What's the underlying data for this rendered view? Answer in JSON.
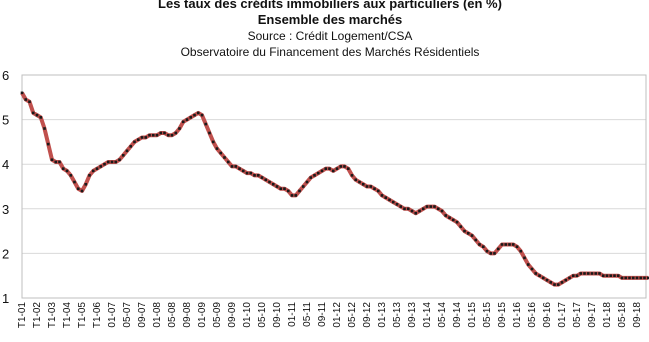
{
  "chart_data": {
    "type": "line",
    "title": "Les taux des crédits immobiliers aux particuliers (en %)",
    "subtitle": "Ensemble des marchés",
    "source": "Source : Crédit Logement/CSA",
    "publisher": "Observatoire du Financement des Marchés Résidentiels",
    "categories": [
      "T1-01",
      null,
      null,
      null,
      "T1-02",
      null,
      null,
      null,
      "T1-03",
      null,
      null,
      null,
      "T1-04",
      null,
      null,
      null,
      "T1-05",
      null,
      null,
      null,
      "T1-06",
      null,
      null,
      null,
      "01-07",
      null,
      null,
      null,
      "05-07",
      null,
      null,
      null,
      "09-07",
      null,
      null,
      null,
      "01-08",
      null,
      null,
      null,
      "05-08",
      null,
      null,
      null,
      "09-08",
      null,
      null,
      null,
      "01-09",
      null,
      null,
      null,
      "05-09",
      null,
      null,
      null,
      "09-09",
      null,
      null,
      null,
      "01-10",
      null,
      null,
      null,
      "05-10",
      null,
      null,
      null,
      "09-10",
      null,
      null,
      null,
      "01-11",
      null,
      null,
      null,
      "05-11",
      null,
      null,
      null,
      "09-11",
      null,
      null,
      null,
      "01-12",
      null,
      null,
      null,
      "05-12",
      null,
      null,
      null,
      "09-12",
      null,
      null,
      null,
      "01-13",
      null,
      null,
      null,
      "05-13",
      null,
      null,
      null,
      "09-13",
      null,
      null,
      null,
      "01-14",
      null,
      null,
      null,
      "05-14",
      null,
      null,
      null,
      "09-14",
      null,
      null,
      null,
      "01-15",
      null,
      null,
      null,
      "05-15",
      null,
      null,
      null,
      "09-15",
      null,
      null,
      null,
      "01-16",
      null,
      null,
      null,
      "05-16",
      null,
      null,
      null,
      "09-16",
      null,
      null,
      null,
      "01-17",
      null,
      null,
      null,
      "05-17",
      null,
      null,
      null,
      "09-17",
      null,
      null,
      null,
      "01-18",
      null,
      null,
      null,
      "05-18",
      null,
      null,
      null,
      "09-18",
      null,
      null,
      null
    ],
    "series": [
      {
        "color": "#c0504d",
        "marker_color": "#1a1a1a",
        "values": [
          5.6,
          5.45,
          5.4,
          5.15,
          5.1,
          5.05,
          4.8,
          4.45,
          4.1,
          4.05,
          4.05,
          3.9,
          3.85,
          3.75,
          3.6,
          3.45,
          3.4,
          3.55,
          3.75,
          3.85,
          3.9,
          3.95,
          4.0,
          4.05,
          4.05,
          4.05,
          4.1,
          4.2,
          4.3,
          4.4,
          4.5,
          4.55,
          4.6,
          4.6,
          4.65,
          4.65,
          4.65,
          4.7,
          4.7,
          4.65,
          4.65,
          4.7,
          4.8,
          4.95,
          5.0,
          5.05,
          5.1,
          5.15,
          5.1,
          4.9,
          4.7,
          4.5,
          4.35,
          4.25,
          4.15,
          4.05,
          3.95,
          3.95,
          3.9,
          3.85,
          3.8,
          3.8,
          3.75,
          3.75,
          3.7,
          3.65,
          3.6,
          3.55,
          3.5,
          3.45,
          3.45,
          3.4,
          3.3,
          3.3,
          3.4,
          3.5,
          3.6,
          3.7,
          3.75,
          3.8,
          3.85,
          3.9,
          3.9,
          3.85,
          3.9,
          3.95,
          3.95,
          3.9,
          3.75,
          3.65,
          3.6,
          3.55,
          3.5,
          3.5,
          3.45,
          3.4,
          3.3,
          3.25,
          3.2,
          3.15,
          3.1,
          3.05,
          3.0,
          3.0,
          2.95,
          2.9,
          2.95,
          3.0,
          3.05,
          3.05,
          3.05,
          3.0,
          2.95,
          2.85,
          2.8,
          2.75,
          2.7,
          2.6,
          2.5,
          2.45,
          2.4,
          2.3,
          2.2,
          2.15,
          2.05,
          2.0,
          2.0,
          2.1,
          2.2,
          2.2,
          2.2,
          2.2,
          2.15,
          2.05,
          1.9,
          1.75,
          1.65,
          1.55,
          1.5,
          1.45,
          1.4,
          1.35,
          1.3,
          1.3,
          1.35,
          1.4,
          1.45,
          1.5,
          1.5,
          1.55,
          1.55,
          1.55,
          1.55,
          1.55,
          1.55,
          1.5,
          1.5,
          1.5,
          1.5,
          1.5,
          1.45,
          1.45,
          1.45,
          1.45,
          1.45,
          1.45,
          1.45,
          1.45
        ]
      }
    ],
    "ylim": [
      1,
      6
    ],
    "yticks": [
      1,
      2,
      3,
      4,
      5,
      6
    ],
    "grid": true
  }
}
